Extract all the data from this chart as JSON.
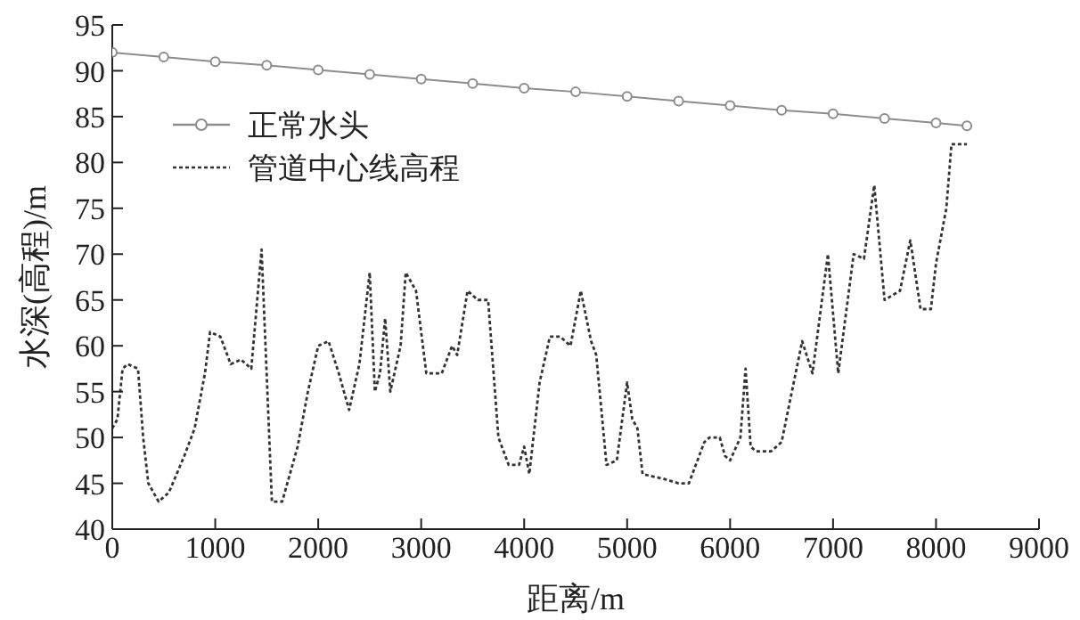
{
  "chart_data": {
    "type": "line",
    "xlabel": "距离/m",
    "ylabel": "水深(高程)/m",
    "xlim": [
      0,
      9000
    ],
    "xticks": [
      0,
      1000,
      2000,
      3000,
      4000,
      5000,
      6000,
      7000,
      8000,
      9000
    ],
    "ylim": [
      40,
      95
    ],
    "yticks": [
      40,
      45,
      50,
      55,
      60,
      65,
      70,
      75,
      80,
      85,
      90,
      95
    ],
    "legend": "top left",
    "grid": false,
    "series": [
      {
        "name": "正常水头",
        "color": "#8c8c8c",
        "marker": "circle",
        "line_style": "solid",
        "x": [
          0,
          500,
          1000,
          1500,
          2000,
          2500,
          3000,
          3500,
          4000,
          4500,
          5000,
          5500,
          6000,
          6500,
          7000,
          7500,
          8000,
          8300
        ],
        "values": [
          92,
          91.5,
          91,
          90.6,
          90.1,
          89.6,
          89.1,
          88.6,
          88.1,
          87.7,
          87.2,
          86.7,
          86.2,
          85.7,
          85.3,
          84.8,
          84.3,
          84
        ]
      },
      {
        "name": "管道中心线高程",
        "color": "#333333",
        "marker": "none",
        "line_style": "dotted",
        "x": [
          0,
          50,
          100,
          150,
          250,
          300,
          350,
          450,
          550,
          700,
          800,
          900,
          950,
          1050,
          1150,
          1250,
          1350,
          1450,
          1550,
          1650,
          1800,
          1900,
          2000,
          2100,
          2200,
          2300,
          2400,
          2500,
          2550,
          2600,
          2650,
          2700,
          2800,
          2850,
          2950,
          3050,
          3200,
          3300,
          3350,
          3450,
          3550,
          3650,
          3750,
          3850,
          3950,
          4000,
          4050,
          4150,
          4250,
          4350,
          4450,
          4550,
          4650,
          4700,
          4800,
          4900,
          5000,
          5050,
          5100,
          5150,
          5350,
          5500,
          5600,
          5700,
          5750,
          5800,
          5900,
          5950,
          6000,
          6100,
          6150,
          6200,
          6250,
          6400,
          6500,
          6700,
          6800,
          6950,
          7050,
          7200,
          7300,
          7400,
          7500,
          7650,
          7750,
          7850,
          7950,
          8000,
          8100,
          8150,
          8300
        ],
        "values": [
          51,
          52,
          57.5,
          58,
          57.5,
          50,
          45,
          43,
          44,
          48,
          51,
          57,
          61.5,
          61,
          58,
          58.5,
          57.5,
          70.5,
          43,
          43,
          49,
          55,
          60,
          60.5,
          57,
          53,
          58,
          68,
          55,
          57,
          63,
          55,
          60,
          68,
          66,
          57,
          57,
          60,
          59,
          66,
          65,
          65,
          50,
          47,
          47,
          49,
          46,
          56,
          61,
          61,
          60,
          66,
          60.5,
          59,
          47,
          47.5,
          56,
          52,
          51,
          46,
          45.5,
          45,
          45,
          48,
          49.5,
          50,
          50,
          48,
          47.5,
          50,
          57.5,
          49,
          48.5,
          48.5,
          49.5,
          60.5,
          57,
          70,
          57,
          70,
          69.5,
          77.5,
          65,
          66,
          71.5,
          64,
          64,
          69,
          75,
          82,
          82
        ]
      }
    ]
  }
}
